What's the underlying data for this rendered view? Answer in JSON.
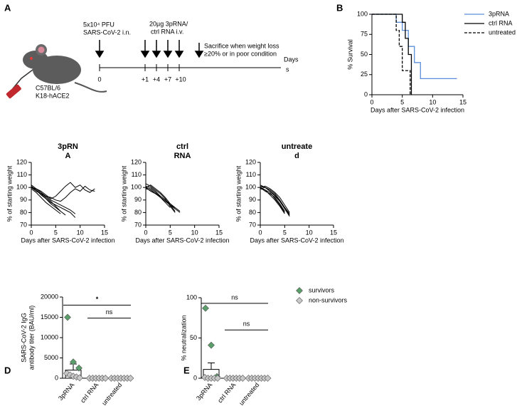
{
  "diagram": {
    "panel": "A",
    "mouse_label": [
      "C57BL/6",
      "K18-hACE2"
    ],
    "steps": [
      {
        "label": [
          "5x10⁴ PFU",
          "SARS-CoV-2 i.n."
        ]
      },
      {
        "label": [
          "20µg 3pRNA/",
          "ctrl RNA i.v."
        ]
      },
      {
        "label": [
          "Sacrifice when weight loss",
          "≥20% or in poor condition"
        ]
      }
    ],
    "timeline": {
      "ticks": [
        "0",
        "+1",
        "+4",
        "+7",
        "+10"
      ],
      "label": [
        "Days",
        "s"
      ]
    }
  },
  "chart_data": [
    {
      "type": "step",
      "panel": "B",
      "y_label": "% Survival",
      "x_label": "Days after SARS-CoV-2 infection",
      "xlim": [
        0,
        15
      ],
      "xticks": [
        0,
        5,
        10,
        15
      ],
      "ylim": [
        0,
        100
      ],
      "yticks": [
        0,
        25,
        50,
        75,
        100
      ],
      "legend": "right",
      "series": [
        {
          "name": "3pRNA",
          "color": "#5b8fd9",
          "dash": "solid",
          "x": [
            0,
            4,
            5,
            6,
            7,
            8,
            14
          ],
          "values": [
            100,
            90,
            80,
            60,
            40,
            20,
            20
          ]
        },
        {
          "name": "ctrl RNA",
          "color": "#000000",
          "dash": "solid",
          "x": [
            0,
            5,
            5.5,
            6,
            6.5
          ],
          "values": [
            100,
            90,
            70,
            50,
            0
          ]
        },
        {
          "name": "untreated",
          "color": "#000000",
          "dash": "dashed",
          "x": [
            0,
            4,
            4.5,
            5,
            6.3
          ],
          "values": [
            100,
            80,
            60,
            30,
            0
          ]
        }
      ]
    },
    {
      "type": "line",
      "title": [
        "3pRN",
        "A"
      ],
      "y_label": "% of starting weight",
      "x_label": "Days after SARS-CoV-2 infection",
      "xlim": [
        0,
        15
      ],
      "xticks": [
        0,
        5,
        10,
        15
      ],
      "ylim": [
        70,
        120
      ],
      "yticks": [
        70,
        80,
        90,
        100,
        110,
        120
      ],
      "color": "#000000",
      "series": [
        {
          "x": [
            0,
            1,
            2,
            3,
            4,
            5,
            6,
            7,
            8,
            9,
            10,
            11,
            12,
            13
          ],
          "values": [
            100,
            99,
            97,
            94,
            91,
            93,
            97,
            101,
            104,
            100,
            102,
            98,
            96,
            99
          ]
        },
        {
          "x": [
            0,
            1,
            2,
            3,
            4,
            5,
            6,
            7,
            8,
            9,
            10,
            11,
            12,
            13
          ],
          "values": [
            101,
            98,
            95,
            93,
            92,
            90,
            89,
            92,
            96,
            99,
            97,
            101,
            98,
            97
          ]
        },
        {
          "x": [
            0,
            1,
            2,
            3,
            4,
            5,
            6,
            7,
            8,
            9
          ],
          "values": [
            100,
            98,
            94,
            91,
            88,
            86,
            84,
            82,
            80,
            76
          ]
        },
        {
          "x": [
            0,
            1,
            2,
            3,
            4,
            5,
            6
          ],
          "values": [
            99,
            96,
            92,
            88,
            85,
            82,
            79
          ]
        },
        {
          "x": [
            0,
            1,
            2,
            3,
            4,
            5,
            6,
            7
          ],
          "values": [
            100,
            97,
            95,
            91,
            87,
            84,
            81,
            78
          ]
        },
        {
          "x": [
            0,
            1,
            2,
            3,
            4,
            5,
            6
          ],
          "values": [
            102,
            99,
            96,
            92,
            89,
            85,
            81
          ]
        },
        {
          "x": [
            0,
            1,
            2,
            3,
            4,
            5,
            6,
            7,
            8,
            9
          ],
          "values": [
            100,
            99,
            96,
            93,
            90,
            88,
            86,
            84,
            82,
            79
          ]
        }
      ]
    },
    {
      "type": "line",
      "title": [
        "ctrl",
        "RNA"
      ],
      "y_label": "% of starting weight",
      "x_label": "Days after SARS-CoV-2 infection",
      "xlim": [
        0,
        15
      ],
      "xticks": [
        0,
        5,
        10,
        15
      ],
      "ylim": [
        70,
        120
      ],
      "yticks": [
        70,
        80,
        90,
        100,
        110,
        120
      ],
      "color": "#000000",
      "series": [
        {
          "x": [
            0,
            1,
            2,
            3,
            4,
            5,
            6
          ],
          "values": [
            100,
            102,
            99,
            96,
            92,
            87,
            83
          ]
        },
        {
          "x": [
            0,
            1,
            2,
            3,
            4,
            5,
            6
          ],
          "values": [
            101,
            100,
            97,
            93,
            90,
            86,
            81
          ]
        },
        {
          "x": [
            0,
            1,
            2,
            3,
            4,
            5,
            6,
            7
          ],
          "values": [
            99,
            98,
            95,
            92,
            89,
            86,
            83,
            80
          ]
        },
        {
          "x": [
            0,
            1,
            2,
            3,
            4,
            5,
            6
          ],
          "values": [
            103,
            101,
            98,
            95,
            91,
            85,
            80
          ]
        },
        {
          "x": [
            0,
            1,
            2,
            3,
            4,
            5
          ],
          "values": [
            100,
            99,
            96,
            92,
            88,
            84
          ]
        },
        {
          "x": [
            0,
            1,
            2,
            3,
            4,
            5,
            6,
            7
          ],
          "values": [
            100,
            97,
            95,
            93,
            90,
            87,
            84,
            81
          ]
        }
      ]
    },
    {
      "type": "line",
      "title": [
        "untreate",
        "d"
      ],
      "y_label": "% of starting weight",
      "x_label": "Days after SARS-CoV-2 infection",
      "xlim": [
        0,
        15
      ],
      "xticks": [
        0,
        5,
        10,
        15
      ],
      "ylim": [
        70,
        120
      ],
      "yticks": [
        70,
        80,
        90,
        100,
        110,
        120
      ],
      "color": "#000000",
      "series": [
        {
          "x": [
            0,
            1,
            2,
            3,
            4,
            5,
            6
          ],
          "values": [
            100,
            101,
            99,
            96,
            92,
            86,
            80
          ]
        },
        {
          "x": [
            0,
            1,
            2,
            3,
            4,
            5,
            6
          ],
          "values": [
            101,
            100,
            98,
            95,
            90,
            84,
            78
          ]
        },
        {
          "x": [
            0,
            1,
            2,
            3,
            4,
            5
          ],
          "values": [
            99,
            98,
            96,
            91,
            86,
            80
          ]
        },
        {
          "x": [
            0,
            1,
            2,
            3,
            4,
            5,
            6
          ],
          "values": [
            102,
            100,
            97,
            94,
            89,
            83,
            77
          ]
        },
        {
          "x": [
            0,
            1,
            2,
            3,
            4,
            5
          ],
          "values": [
            100,
            97,
            95,
            92,
            87,
            81
          ]
        },
        {
          "x": [
            0,
            1,
            2,
            3,
            4,
            5,
            6
          ],
          "values": [
            99,
            100,
            97,
            93,
            89,
            84,
            79
          ]
        },
        {
          "x": [
            0,
            1,
            2,
            3,
            4,
            5
          ],
          "values": [
            100,
            98,
            94,
            90,
            85,
            79
          ]
        }
      ]
    },
    {
      "type": "bar",
      "panel": "D",
      "y_label": [
        "SARS-CoV-2 IgG",
        "antibody titer (BAU/ml)"
      ],
      "categories": [
        "3pRNA",
        "ctrl RNA",
        "untreated"
      ],
      "ylim": [
        0,
        20000
      ],
      "yticks": [
        0,
        5000,
        10000,
        15000,
        20000
      ],
      "values": [
        2000,
        0,
        0
      ],
      "errors": [
        1500,
        0,
        0
      ],
      "series": [
        {
          "color": "#5a9e6a",
          "points": [
            [
              15000,
              4000,
              2500
            ],
            [],
            []
          ]
        },
        {
          "color": "#c8c8c8",
          "points": [
            [
              1200,
              800,
              500,
              300,
              100
            ],
            [
              0,
              0,
              0,
              0,
              0,
              0
            ],
            [
              0,
              0,
              0,
              0,
              0,
              0,
              0
            ]
          ]
        }
      ],
      "annotations": [
        {
          "text": "*",
          "from": 0,
          "to": 2,
          "y": 18000
        },
        {
          "text": "ns",
          "from": 1,
          "to": 2,
          "y": 14800
        }
      ]
    },
    {
      "type": "bar",
      "panel": "E",
      "y_label": "% neutralization",
      "categories": [
        "3pRNA",
        "ctrl RNA",
        "untreated"
      ],
      "ylim": [
        0,
        100
      ],
      "yticks": [
        0,
        50,
        100
      ],
      "values": [
        11,
        0,
        0
      ],
      "errors": [
        8,
        0,
        0
      ],
      "legend": "right",
      "series": [
        {
          "name": "survivors",
          "color": "#5a9e6a",
          "points": [
            [
              87,
              41,
              2
            ],
            [],
            []
          ]
        },
        {
          "name": "non-survivors",
          "color": "#c8c8c8",
          "points": [
            [
              1,
              0,
              0,
              0,
              0
            ],
            [
              0,
              0,
              0,
              0,
              0,
              0
            ],
            [
              0,
              0,
              0,
              0,
              0,
              0,
              0
            ]
          ]
        }
      ],
      "annotations": [
        {
          "text": "ns",
          "from": 0,
          "to": 2,
          "y": 93
        },
        {
          "text": "ns",
          "from": 1,
          "to": 2,
          "y": 60
        }
      ]
    }
  ]
}
